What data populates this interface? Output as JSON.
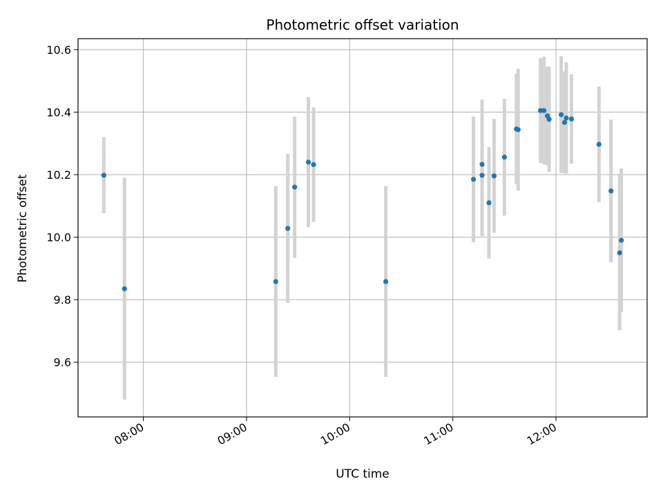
{
  "chart_data": {
    "type": "scatter",
    "title": "Photometric offset variation",
    "xlabel": "UTC time",
    "ylabel": "Photometric offset",
    "xlim": [
      "07:22",
      "12:53"
    ],
    "ylim": [
      9.425,
      10.635
    ],
    "x_ticks": [
      "08:00",
      "09:00",
      "10:00",
      "11:00",
      "12:00"
    ],
    "y_ticks": [
      9.6,
      9.8,
      10.0,
      10.2,
      10.4,
      10.6
    ],
    "y_tick_labels": [
      "9.6",
      "9.8",
      "10.0",
      "10.2",
      "10.4",
      "10.6"
    ],
    "grid": true,
    "colors": {
      "point": "#1f77b4",
      "errorbar": "#d3d3d3",
      "grid": "#b0b0b0"
    },
    "points": [
      {
        "t": "07:37",
        "y": 10.198,
        "err": 0.122
      },
      {
        "t": "07:49",
        "y": 9.835,
        "err": 0.355
      },
      {
        "t": "09:17",
        "y": 9.858,
        "err": 0.305
      },
      {
        "t": "09:24",
        "y": 10.028,
        "err": 0.238
      },
      {
        "t": "09:28",
        "y": 10.16,
        "err": 0.226
      },
      {
        "t": "09:36",
        "y": 10.24,
        "err": 0.208
      },
      {
        "t": "09:39",
        "y": 10.232,
        "err": 0.183
      },
      {
        "t": "10:21",
        "y": 9.858,
        "err": 0.305
      },
      {
        "t": "11:12",
        "y": 10.185,
        "err": 0.201
      },
      {
        "t": "11:17",
        "y": 10.233,
        "err": 0.207
      },
      {
        "t": "11:17",
        "y": 10.198,
        "err": 0.195
      },
      {
        "t": "11:21",
        "y": 10.11,
        "err": 0.178
      },
      {
        "t": "11:24",
        "y": 10.196,
        "err": 0.182
      },
      {
        "t": "11:30",
        "y": 10.256,
        "err": 0.187
      },
      {
        "t": "11:37",
        "y": 10.346,
        "err": 0.177
      },
      {
        "t": "11:38",
        "y": 10.344,
        "err": 0.195
      },
      {
        "t": "11:51",
        "y": 10.405,
        "err": 0.168
      },
      {
        "t": "11:53",
        "y": 10.405,
        "err": 0.172
      },
      {
        "t": "11:55",
        "y": 10.388,
        "err": 0.158
      },
      {
        "t": "11:56",
        "y": 10.377,
        "err": 0.168
      },
      {
        "t": "12:03",
        "y": 10.392,
        "err": 0.187
      },
      {
        "t": "12:05",
        "y": 10.367,
        "err": 0.163
      },
      {
        "t": "12:06",
        "y": 10.381,
        "err": 0.178
      },
      {
        "t": "12:09",
        "y": 10.378,
        "err": 0.143
      },
      {
        "t": "12:25",
        "y": 10.297,
        "err": 0.185
      },
      {
        "t": "12:32",
        "y": 10.148,
        "err": 0.228
      },
      {
        "t": "12:37",
        "y": 9.95,
        "err": 0.248
      },
      {
        "t": "12:38",
        "y": 9.99,
        "err": 0.23
      }
    ]
  }
}
